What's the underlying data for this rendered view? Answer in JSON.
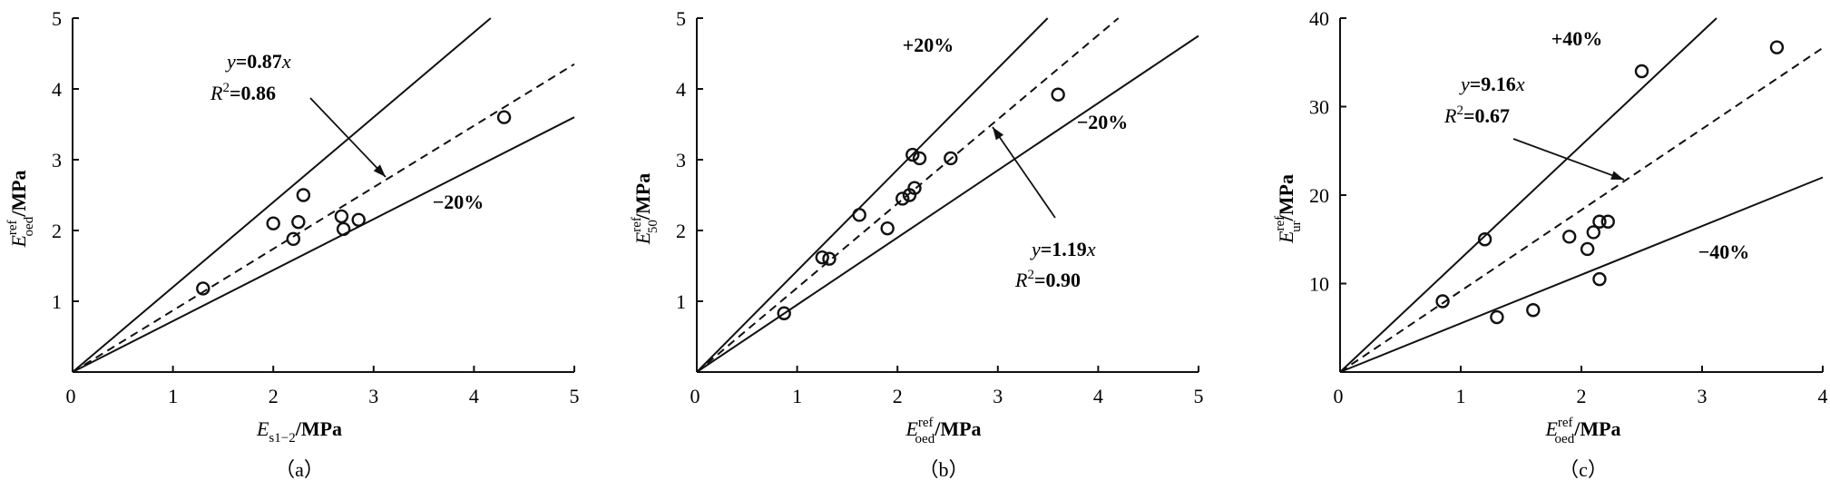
{
  "chart_data": [
    {
      "type": "scatter",
      "panel_label": "（a）",
      "ylabel": {
        "base": "E",
        "sup": "ref",
        "sub": "oed",
        "unit": "/MPa"
      },
      "xlabel": {
        "base": "E",
        "sub": "s1−2",
        "unit": "/MPa"
      },
      "xlim": [
        0,
        5
      ],
      "ylim": [
        0,
        5
      ],
      "xticks": [
        0,
        1,
        2,
        3,
        4,
        5
      ],
      "yticks": [
        1,
        2,
        3,
        4,
        5
      ],
      "points": [
        [
          1.3,
          1.18
        ],
        [
          2.0,
          2.1
        ],
        [
          2.2,
          1.88
        ],
        [
          2.25,
          2.12
        ],
        [
          2.3,
          2.5
        ],
        [
          2.68,
          2.2
        ],
        [
          2.7,
          2.02
        ],
        [
          2.85,
          2.15
        ],
        [
          4.3,
          3.6
        ]
      ],
      "lines": [
        {
          "slope": 1.2,
          "style": "solid",
          "label": ""
        },
        {
          "slope": 0.87,
          "style": "dashed",
          "label": ""
        },
        {
          "slope": 0.72,
          "style": "solid",
          "label": "−20%"
        }
      ],
      "annotation": {
        "eq_prefix": "y",
        "eq_value": "=0.87",
        "eq_suffix": "x",
        "r2_prefix": "R",
        "r2_value": "=0.86"
      }
    },
    {
      "type": "scatter",
      "panel_label": "（b）",
      "ylabel": {
        "base": "E",
        "sup": "ref",
        "sub": "50",
        "unit": "/MPa"
      },
      "xlabel": {
        "base": "E",
        "sup": "ref",
        "sub": "oed",
        "unit": "/MPa"
      },
      "xlim": [
        0,
        5
      ],
      "ylim": [
        0,
        5
      ],
      "xticks": [
        0,
        1,
        2,
        3,
        4,
        5
      ],
      "yticks": [
        1,
        2,
        3,
        4,
        5
      ],
      "points": [
        [
          0.87,
          0.83
        ],
        [
          1.25,
          1.62
        ],
        [
          1.32,
          1.6
        ],
        [
          1.62,
          2.22
        ],
        [
          1.9,
          2.03
        ],
        [
          2.05,
          2.45
        ],
        [
          2.12,
          2.5
        ],
        [
          2.15,
          3.07
        ],
        [
          2.17,
          2.6
        ],
        [
          2.22,
          3.02
        ],
        [
          2.53,
          3.02
        ],
        [
          3.6,
          3.92
        ]
      ],
      "lines": [
        {
          "slope": 1.43,
          "style": "solid",
          "label": "+20%"
        },
        {
          "slope": 1.19,
          "style": "dashed",
          "label": ""
        },
        {
          "slope": 0.95,
          "style": "solid",
          "label": "−20%"
        }
      ],
      "annotation": {
        "eq_prefix": "y",
        "eq_value": "=1.19",
        "eq_suffix": "x",
        "r2_prefix": "R",
        "r2_value": "=0.90"
      }
    },
    {
      "type": "scatter",
      "panel_label": "（c）",
      "ylabel": {
        "base": "E",
        "sup": "ref",
        "sub": "ur",
        "unit": "/MPa"
      },
      "xlabel": {
        "base": "E",
        "sup": "ref",
        "sub": "oed",
        "unit": "/MPa"
      },
      "xlim": [
        0,
        4
      ],
      "ylim": [
        0,
        40
      ],
      "xticks": [
        0,
        1,
        2,
        3,
        4
      ],
      "yticks": [
        10,
        20,
        30,
        40
      ],
      "points": [
        [
          0.85,
          8.0
        ],
        [
          1.2,
          15.0
        ],
        [
          1.3,
          6.2
        ],
        [
          1.6,
          7.0
        ],
        [
          1.9,
          15.3
        ],
        [
          2.05,
          13.9
        ],
        [
          2.1,
          15.8
        ],
        [
          2.15,
          10.5
        ],
        [
          2.15,
          17.0
        ],
        [
          2.22,
          17.0
        ],
        [
          2.5,
          34.0
        ],
        [
          3.62,
          36.7
        ]
      ],
      "lines": [
        {
          "slope": 12.82,
          "style": "solid",
          "label": "+40%"
        },
        {
          "slope": 9.16,
          "style": "dashed",
          "label": ""
        },
        {
          "slope": 5.5,
          "style": "solid",
          "label": "−40%"
        }
      ],
      "annotation": {
        "eq_prefix": "y",
        "eq_value": "=9.16",
        "eq_suffix": "x",
        "r2_prefix": "R",
        "r2_value": "=0.67"
      }
    }
  ]
}
